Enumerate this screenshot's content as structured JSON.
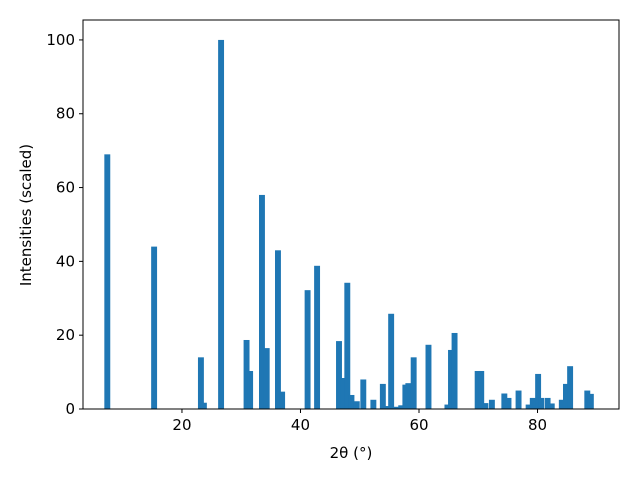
{
  "chart_data": {
    "type": "bar",
    "x_label": "2θ (°)",
    "y_label": "Intensities (scaled)",
    "color": "#1f77b4",
    "bar_width": 1,
    "x": [
      7.4,
      15.3,
      23.2,
      23.7,
      26.6,
      30.9,
      31.5,
      33.5,
      34.3,
      36.2,
      36.9,
      41.2,
      42.8,
      46.5,
      47.3,
      47.9,
      48.6,
      49.5,
      50.6,
      52.3,
      53.9,
      54.5,
      55.3,
      56.2,
      57.0,
      57.7,
      58.2,
      59.1,
      61.6,
      64.8,
      65.4,
      66.0,
      69.9,
      70.5,
      71.2,
      72.3,
      74.4,
      75.1,
      76.8,
      78.5,
      79.2,
      80.1,
      80.6,
      81.7,
      82.4,
      84.1,
      84.8,
      85.5,
      88.4,
      89.0
    ],
    "values": [
      69,
      44,
      14,
      1.7,
      100,
      18.7,
      10.3,
      58,
      16.5,
      43,
      4.7,
      32.2,
      38.8,
      18.4,
      8.4,
      34.2,
      3.8,
      2.1,
      8,
      2.5,
      6.8,
      0.8,
      25.8,
      0.6,
      1,
      6.6,
      7,
      14,
      17.4,
      1.2,
      16,
      20.6,
      10.3,
      10.3,
      1.6,
      2.5,
      4.2,
      3,
      5,
      1.2,
      3,
      9.5,
      3,
      3,
      1.5,
      2.5,
      6.8,
      11.6,
      5,
      4.1
    ],
    "xlim": [
      3.3,
      93.75
    ],
    "ylim": [
      0,
      105.4
    ],
    "xticks": [
      20,
      40,
      60,
      80
    ],
    "yticks": [
      0,
      20,
      40,
      60,
      80,
      100
    ]
  }
}
